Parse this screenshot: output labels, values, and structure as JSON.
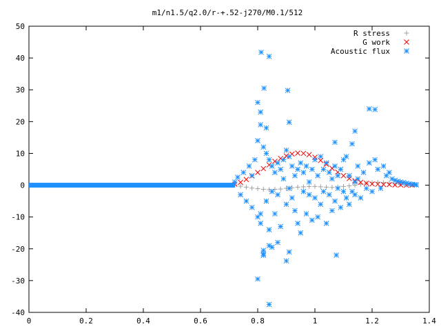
{
  "chart_data": {
    "type": "scatter",
    "title": "m1/n1.5/q2.0/r-+.52-j270/M0.1/512",
    "xlabel": "",
    "ylabel": "",
    "xlim": [
      0,
      1.4
    ],
    "ylim": [
      -40,
      50
    ],
    "x_ticks": [
      0,
      0.2,
      0.4,
      0.6,
      0.8,
      1,
      1.2,
      1.4
    ],
    "x_tick_labels": [
      "0",
      "0.2",
      "0.4",
      "0.6",
      "0.8",
      "1",
      "1.2",
      "1.4"
    ],
    "y_ticks": [
      -40,
      -30,
      -20,
      -10,
      0,
      10,
      20,
      30,
      40,
      50
    ],
    "y_tick_labels": [
      "-40",
      "-30",
      "-20",
      "-10",
      "0",
      "10",
      "20",
      "30",
      "40",
      "50"
    ],
    "grid": false,
    "legend_position": "top-right",
    "series": [
      {
        "name": "R stress",
        "marker": "+",
        "color": "#a0a0a0",
        "x": [
          0.72,
          0.74,
          0.76,
          0.78,
          0.8,
          0.82,
          0.84,
          0.86,
          0.88,
          0.9,
          0.92,
          0.94,
          0.96,
          0.98,
          1.0,
          1.02,
          1.04,
          1.06,
          1.08,
          1.1,
          1.12,
          1.14,
          1.16,
          1.18,
          1.2,
          1.22,
          1.24,
          1.26,
          1.28,
          1.3,
          1.32,
          1.34
        ],
        "y": [
          0.0,
          -0.3,
          -0.6,
          -0.9,
          -1.1,
          -1.3,
          -1.4,
          -1.3,
          -1.2,
          -1.0,
          -0.8,
          -0.6,
          -0.5,
          -0.4,
          -0.4,
          -0.5,
          -0.6,
          -0.7,
          -0.6,
          -0.4,
          -0.2,
          0.0,
          0.3,
          0.6,
          0.8,
          0.9,
          0.8,
          0.6,
          0.4,
          0.2,
          0.1,
          0.0
        ]
      },
      {
        "name": "G work",
        "marker": "x",
        "color": "#ff0000",
        "x": [
          0.72,
          0.74,
          0.76,
          0.78,
          0.8,
          0.82,
          0.84,
          0.86,
          0.88,
          0.9,
          0.92,
          0.94,
          0.96,
          0.98,
          1.0,
          1.02,
          1.04,
          1.06,
          1.08,
          1.1,
          1.12,
          1.14,
          1.16,
          1.18,
          1.2,
          1.22,
          1.24,
          1.26,
          1.28,
          1.3,
          1.32,
          1.34
        ],
        "y": [
          0.3,
          0.9,
          1.8,
          2.9,
          4.0,
          5.2,
          6.4,
          7.5,
          8.4,
          9.2,
          9.8,
          10.1,
          10.0,
          9.6,
          8.8,
          7.8,
          6.6,
          5.3,
          4.1,
          3.0,
          2.1,
          1.4,
          0.9,
          0.6,
          0.4,
          0.3,
          0.2,
          0.2,
          0.1,
          0.1,
          0.0,
          0.0
        ]
      },
      {
        "name": "Acoustic flux",
        "marker": "*",
        "color": "#1e90ff",
        "x": [
          0.72,
          0.73,
          0.74,
          0.75,
          0.76,
          0.77,
          0.78,
          0.78,
          0.79,
          0.8,
          0.8,
          0.81,
          0.81,
          0.82,
          0.82,
          0.83,
          0.83,
          0.84,
          0.84,
          0.85,
          0.85,
          0.86,
          0.86,
          0.87,
          0.87,
          0.88,
          0.88,
          0.89,
          0.89,
          0.9,
          0.9,
          0.91,
          0.91,
          0.92,
          0.92,
          0.93,
          0.93,
          0.94,
          0.94,
          0.95,
          0.95,
          0.96,
          0.96,
          0.97,
          0.97,
          0.98,
          0.98,
          0.99,
          0.99,
          1.0,
          1.0,
          1.01,
          1.01,
          1.02,
          1.02,
          1.03,
          1.03,
          1.04,
          1.04,
          1.05,
          1.05,
          1.06,
          1.06,
          1.07,
          1.07,
          1.08,
          1.08,
          1.09,
          1.09,
          1.1,
          1.1,
          1.11,
          1.11,
          1.12,
          1.12,
          1.13,
          1.13,
          1.14,
          1.14,
          1.15,
          1.15,
          1.16,
          1.17,
          1.18,
          1.19,
          1.2,
          1.21,
          1.22,
          1.23,
          1.24,
          1.25,
          1.26,
          1.27,
          1.28,
          1.29,
          1.3,
          1.31,
          1.32,
          1.33,
          1.34,
          1.35,
          1.355,
          0.812,
          0.84,
          0.822,
          0.905,
          0.8,
          0.81,
          0.83,
          0.91,
          0.82,
          0.8,
          0.84,
          0.9,
          0.82,
          0.85,
          0.87,
          1.19,
          1.21,
          1.07,
          1.14,
          0.84,
          0.82,
          0.91,
          0.81,
          1.075
        ],
        "y": [
          1.0,
          2.5,
          -3.0,
          4.0,
          -5.0,
          6.0,
          3.0,
          -7.0,
          8.0,
          -10.0,
          14.0,
          19.0,
          -12.0,
          12.0,
          -22.0,
          10.0,
          -5.0,
          8.0,
          -14.0,
          6.0,
          -2.0,
          4.0,
          -9.0,
          7.0,
          -3.0,
          5.0,
          -13.0,
          8.0,
          2.0,
          -6.0,
          11.0,
          -1.0,
          9.0,
          -4.0,
          6.0,
          -8.0,
          3.0,
          -12.0,
          5.0,
          -15.0,
          7.0,
          -2.0,
          4.0,
          -9.0,
          6.0,
          -3.0,
          1.0,
          -11.0,
          5.0,
          -4.0,
          8.0,
          -10.0,
          3.0,
          -6.0,
          9.0,
          -2.0,
          5.0,
          -12.0,
          7.0,
          -3.0,
          4.0,
          -8.0,
          2.0,
          -5.0,
          6.0,
          -1.0,
          3.0,
          -7.0,
          5.0,
          -2.0,
          8.0,
          -4.0,
          9.0,
          -6.0,
          3.0,
          -2.0,
          13.0,
          1.0,
          -3.0,
          6.0,
          2.0,
          -4.0,
          4.0,
          -1.0,
          7.0,
          -2.0,
          8.0,
          5.0,
          -1.0,
          6.0,
          3.0,
          4.0,
          2.0,
          1.5,
          1.2,
          1.0,
          0.8,
          0.6,
          0.4,
          0.3,
          0.2,
          0.1,
          41.8,
          40.5,
          30.5,
          29.8,
          26.0,
          23.0,
          18.0,
          19.8,
          -20.5,
          -29.5,
          -37.5,
          -23.8,
          -22.0,
          -19.5,
          -18.0,
          24.0,
          23.8,
          13.5,
          17.0,
          -19.0,
          -21.5,
          -21.0,
          -9.0,
          -22.0
        ],
        "baseline_x": [
          0.0,
          0.72
        ],
        "baseline_y": 0
      }
    ]
  }
}
